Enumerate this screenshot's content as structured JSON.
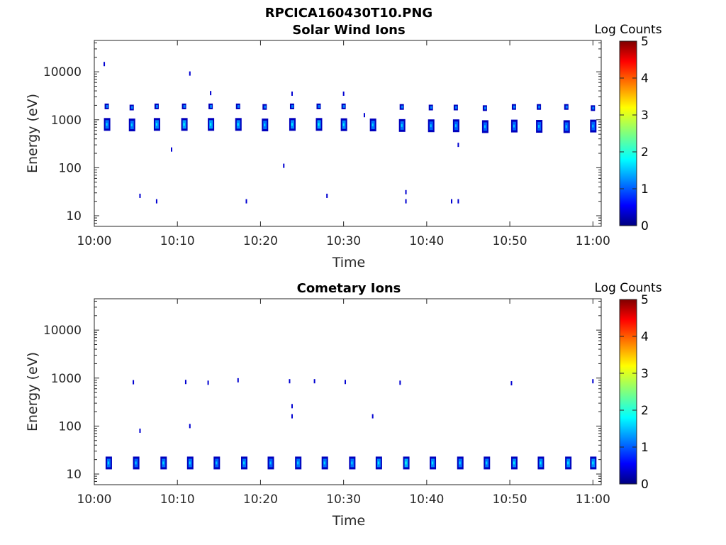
{
  "figure": {
    "title": "RPCICA160430T10.PNG"
  },
  "colorbar": {
    "label": "Log Counts",
    "ticks": [
      "0",
      "1",
      "2",
      "3",
      "4",
      "5"
    ],
    "range": [
      0,
      5
    ],
    "colormap": "jet"
  },
  "chart_data": [
    {
      "type": "heatmap",
      "title": "Solar Wind Ions",
      "xlabel": "Time",
      "ylabel": "Energy (eV)",
      "xlim": [
        "10:00",
        "11:01"
      ],
      "ylim": [
        6,
        45000
      ],
      "yscale": "log",
      "xticks": [
        "10:00",
        "10:10",
        "10:20",
        "10:30",
        "10:40",
        "10:50",
        "11:00"
      ],
      "yticks": [
        "10",
        "100",
        "1000",
        "10000"
      ],
      "clusters": [
        {
          "t": "10:01.5",
          "e": 800,
          "v": 1.2
        },
        {
          "t": "10:04.5",
          "e": 780,
          "v": 1.2
        },
        {
          "t": "10:07.5",
          "e": 800,
          "v": 1.3
        },
        {
          "t": "10:10.8",
          "e": 800,
          "v": 1.4
        },
        {
          "t": "10:14",
          "e": 800,
          "v": 1.4
        },
        {
          "t": "10:17.3",
          "e": 800,
          "v": 1.3
        },
        {
          "t": "10:20.5",
          "e": 780,
          "v": 1.2
        },
        {
          "t": "10:23.8",
          "e": 800,
          "v": 1.3
        },
        {
          "t": "10:27",
          "e": 800,
          "v": 1.4
        },
        {
          "t": "10:30",
          "e": 790,
          "v": 1.3
        },
        {
          "t": "10:33.5",
          "e": 780,
          "v": 1.2
        },
        {
          "t": "10:37",
          "e": 760,
          "v": 1.2
        },
        {
          "t": "10:40.5",
          "e": 750,
          "v": 1.1
        },
        {
          "t": "10:43.5",
          "e": 750,
          "v": 1.1
        },
        {
          "t": "10:47",
          "e": 720,
          "v": 1.1
        },
        {
          "t": "10:50.5",
          "e": 740,
          "v": 1.1
        },
        {
          "t": "10:53.5",
          "e": 730,
          "v": 1.1
        },
        {
          "t": "10:56.8",
          "e": 720,
          "v": 1.1
        },
        {
          "t": "11:00",
          "e": 740,
          "v": 1.1
        }
      ],
      "upper_clusters": [
        {
          "t": "10:01.5",
          "e": 1900
        },
        {
          "t": "10:04.5",
          "e": 1800
        },
        {
          "t": "10:07.5",
          "e": 1900
        },
        {
          "t": "10:10.8",
          "e": 1900
        },
        {
          "t": "10:14",
          "e": 1900
        },
        {
          "t": "10:17.3",
          "e": 1900
        },
        {
          "t": "10:20.5",
          "e": 1850
        },
        {
          "t": "10:23.8",
          "e": 1900
        },
        {
          "t": "10:27",
          "e": 1900
        },
        {
          "t": "10:30",
          "e": 1900
        },
        {
          "t": "10:37",
          "e": 1850
        },
        {
          "t": "10:40.5",
          "e": 1800
        },
        {
          "t": "10:43.5",
          "e": 1800
        },
        {
          "t": "10:47",
          "e": 1750
        },
        {
          "t": "10:50.5",
          "e": 1850
        },
        {
          "t": "10:53.5",
          "e": 1850
        },
        {
          "t": "10:56.8",
          "e": 1850
        },
        {
          "t": "11:00",
          "e": 1750
        }
      ],
      "sparse_points": [
        {
          "t": "10:01.2",
          "e": 14500
        },
        {
          "t": "10:11.5",
          "e": 9200
        },
        {
          "t": "10:14",
          "e": 3600
        },
        {
          "t": "10:23.8",
          "e": 3500
        },
        {
          "t": "10:30",
          "e": 3500
        },
        {
          "t": "10:09.3",
          "e": 240
        },
        {
          "t": "10:22.8",
          "e": 110
        },
        {
          "t": "10:32.5",
          "e": 1250
        },
        {
          "t": "10:43.8",
          "e": 300
        },
        {
          "t": "10:05.5",
          "e": 26
        },
        {
          "t": "10:07.5",
          "e": 20
        },
        {
          "t": "10:18.3",
          "e": 20
        },
        {
          "t": "10:28",
          "e": 26
        },
        {
          "t": "10:37.5",
          "e": 20
        },
        {
          "t": "10:37.5",
          "e": 31
        },
        {
          "t": "10:43",
          "e": 20
        },
        {
          "t": "10:43.8",
          "e": 20
        }
      ]
    },
    {
      "type": "heatmap",
      "title": "Cometary Ions",
      "xlabel": "Time",
      "ylabel": "Energy (eV)",
      "xlim": [
        "10:00",
        "11:01"
      ],
      "ylim": [
        6,
        45000
      ],
      "yscale": "log",
      "xticks": [
        "10:00",
        "10:10",
        "10:20",
        "10:30",
        "10:40",
        "10:50",
        "11:00"
      ],
      "yticks": [
        "10",
        "100",
        "1000",
        "10000"
      ],
      "clusters": [
        {
          "t": "10:01.7",
          "e": 17,
          "v": 1.2
        },
        {
          "t": "10:05",
          "e": 17,
          "v": 1.1
        },
        {
          "t": "10:08.3",
          "e": 17,
          "v": 1.2
        },
        {
          "t": "10:11.5",
          "e": 17,
          "v": 1.2
        },
        {
          "t": "10:14.7",
          "e": 17,
          "v": 1.1
        },
        {
          "t": "10:18",
          "e": 17,
          "v": 1.2
        },
        {
          "t": "10:21.2",
          "e": 17,
          "v": 1.1
        },
        {
          "t": "10:24.5",
          "e": 17,
          "v": 1.2
        },
        {
          "t": "10:27.7",
          "e": 17,
          "v": 1.2
        },
        {
          "t": "10:31",
          "e": 17,
          "v": 1.2
        },
        {
          "t": "10:34.2",
          "e": 17,
          "v": 1.3
        },
        {
          "t": "10:37.5",
          "e": 17,
          "v": 1.5
        },
        {
          "t": "10:40.7",
          "e": 17,
          "v": 1.3
        },
        {
          "t": "10:44",
          "e": 17,
          "v": 1.2
        },
        {
          "t": "10:47.2",
          "e": 17,
          "v": 1.2
        },
        {
          "t": "10:50.5",
          "e": 17,
          "v": 1.3
        },
        {
          "t": "10:53.7",
          "e": 17,
          "v": 1.3
        },
        {
          "t": "10:57",
          "e": 17,
          "v": 1.3
        },
        {
          "t": "11:00",
          "e": 17,
          "v": 1.3
        }
      ],
      "sparse_points": [
        {
          "t": "10:04.7",
          "e": 820
        },
        {
          "t": "10:05.5",
          "e": 80
        },
        {
          "t": "10:11",
          "e": 830
        },
        {
          "t": "10:11.5",
          "e": 100
        },
        {
          "t": "10:13.7",
          "e": 800
        },
        {
          "t": "10:17.3",
          "e": 900
        },
        {
          "t": "10:23.5",
          "e": 860
        },
        {
          "t": "10:23.8",
          "e": 260
        },
        {
          "t": "10:23.8",
          "e": 160
        },
        {
          "t": "10:26.5",
          "e": 860
        },
        {
          "t": "10:30.2",
          "e": 830
        },
        {
          "t": "10:33.5",
          "e": 160
        },
        {
          "t": "10:36.8",
          "e": 800
        },
        {
          "t": "10:50.2",
          "e": 780
        },
        {
          "t": "11:00",
          "e": 860
        }
      ]
    }
  ]
}
